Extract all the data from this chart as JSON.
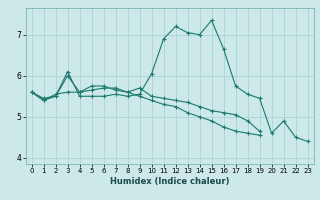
{
  "xlabel": "Humidex (Indice chaleur)",
  "ylabel": "",
  "bg_color": "#cce8e8",
  "line_color": "#1a7a6e",
  "grid_color": "#aad4d4",
  "xlim": [
    -0.5,
    23.5
  ],
  "ylim": [
    3.85,
    7.65
  ],
  "yticks": [
    4,
    5,
    6,
    7
  ],
  "xticks": [
    0,
    1,
    2,
    3,
    4,
    5,
    6,
    7,
    8,
    9,
    10,
    11,
    12,
    13,
    14,
    15,
    16,
    17,
    18,
    19,
    20,
    21,
    22,
    23
  ],
  "series": [
    [
      5.6,
      5.4,
      5.5,
      6.1,
      5.5,
      5.5,
      5.5,
      5.55,
      5.5,
      5.55,
      6.05,
      6.9,
      7.2,
      7.05,
      7.0,
      7.35,
      6.65,
      5.75,
      5.55,
      5.45,
      4.6,
      4.9,
      4.5,
      4.4
    ],
    [
      5.6,
      5.45,
      5.5,
      6.0,
      5.6,
      5.75,
      5.75,
      5.65,
      5.6,
      5.7,
      5.5,
      5.45,
      5.4,
      5.35,
      5.25,
      5.15,
      5.1,
      5.05,
      4.9,
      4.65,
      null,
      null,
      null,
      null
    ],
    [
      5.6,
      5.4,
      5.55,
      5.6,
      5.6,
      5.65,
      5.7,
      5.7,
      5.6,
      5.5,
      5.4,
      5.3,
      5.25,
      5.1,
      5.0,
      4.9,
      4.75,
      4.65,
      4.6,
      4.55,
      null,
      null,
      null,
      null
    ]
  ]
}
